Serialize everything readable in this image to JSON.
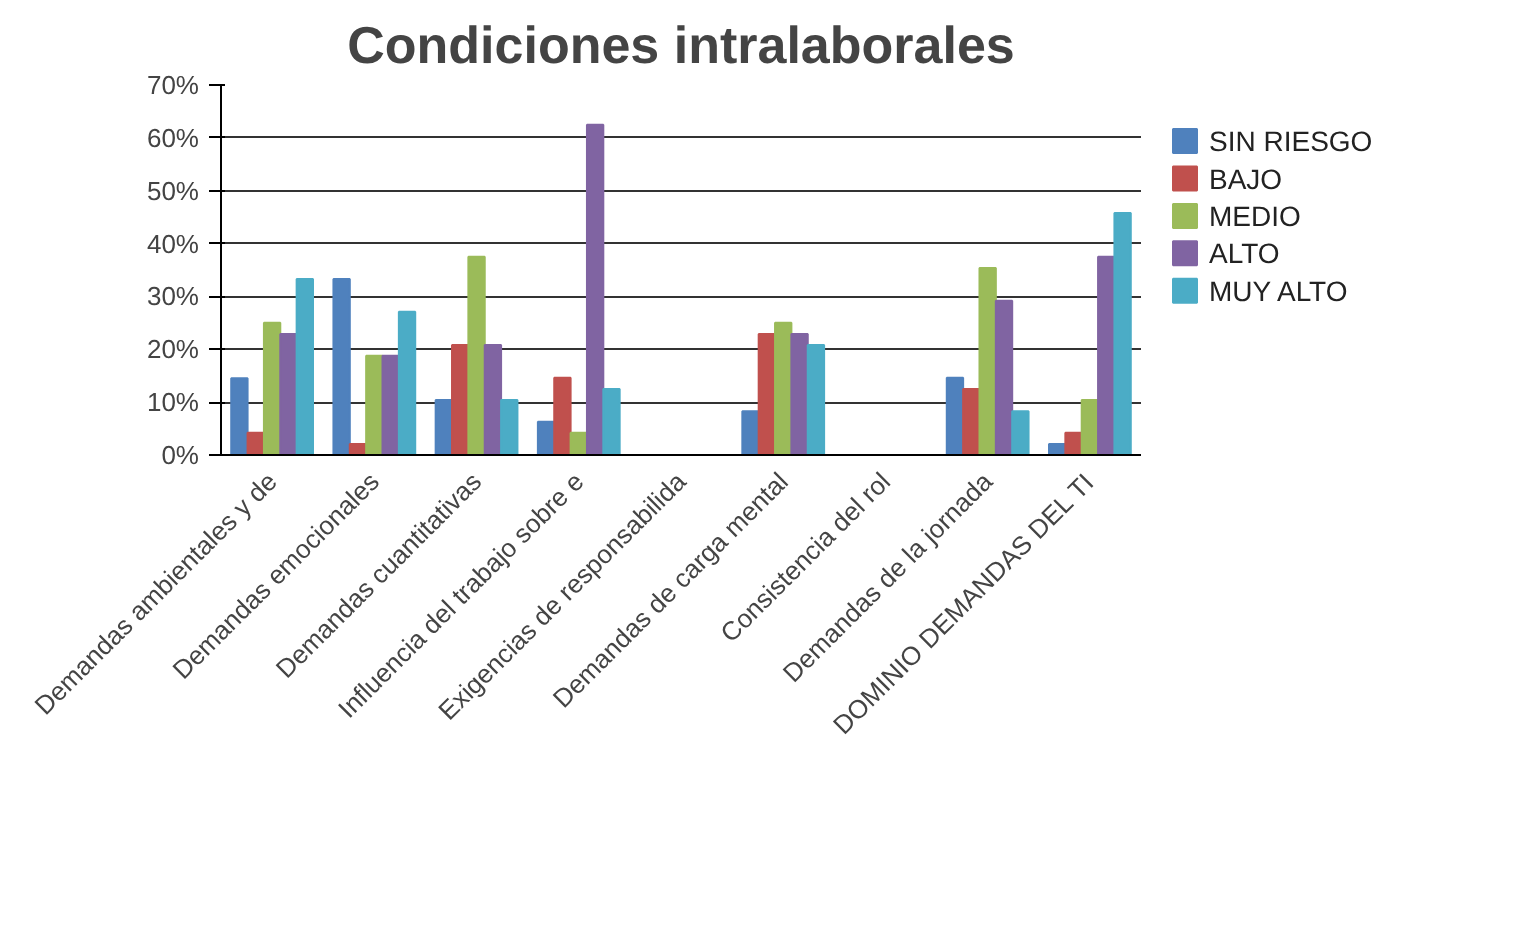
{
  "chart_data": {
    "type": "bar",
    "title": "Condiciones intralaborales",
    "categories": [
      "Demandas ambientales y de",
      "Demandas emocionales",
      "Demandas cuantitativas",
      "Influencia del trabajo sobre e",
      "Exigencias de responsabilida",
      "Demandas de carga mental",
      "Consistencia del rol",
      "Demandas de la jornada",
      "DOMINIO DEMANDAS DEL TI"
    ],
    "series": [
      {
        "name": "SIN RIESGO",
        "color": "#4f81bd",
        "values": [
          14.5,
          33.3,
          10.4,
          6.3,
          0,
          8.3,
          0,
          14.6,
          2.1
        ]
      },
      {
        "name": "BAJO",
        "color": "#c0504d",
        "values": [
          4.2,
          2.1,
          20.8,
          14.6,
          0,
          22.9,
          0,
          12.5,
          4.2
        ]
      },
      {
        "name": "MEDIO",
        "color": "#9bbb59",
        "values": [
          25,
          18.8,
          37.5,
          4.2,
          0,
          25,
          0,
          35.4,
          10.4
        ]
      },
      {
        "name": "ALTO",
        "color": "#8064a2",
        "values": [
          22.9,
          18.8,
          20.8,
          62.5,
          0,
          22.9,
          0,
          29.2,
          37.5
        ]
      },
      {
        "name": "MUY ALTO",
        "color": "#4bacc6",
        "values": [
          33.3,
          27.1,
          10.4,
          12.5,
          0,
          20.8,
          0,
          8.3,
          45.8
        ]
      }
    ],
    "ylim": [
      0,
      70
    ],
    "yticks": [
      {
        "value": 0,
        "label": "0%"
      },
      {
        "value": 10,
        "label": "10%"
      },
      {
        "value": 20,
        "label": "20%"
      },
      {
        "value": 30,
        "label": "30%"
      },
      {
        "value": 40,
        "label": "40%"
      },
      {
        "value": 50,
        "label": "50%"
      },
      {
        "value": 60,
        "label": "60%"
      },
      {
        "value": 70,
        "label": "70%"
      }
    ],
    "grid": "y",
    "legend": "right"
  }
}
